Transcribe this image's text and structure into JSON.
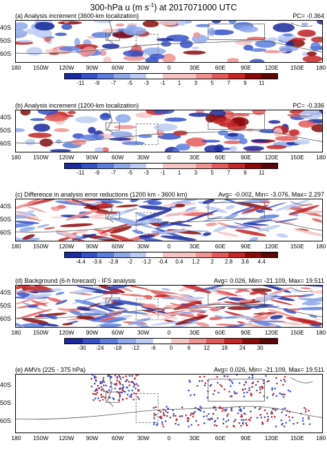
{
  "figure": {
    "title_main": "300-hPa u (m s",
    "title_sup": "-1",
    "title_end": ") at 2017071000 UTC"
  },
  "colors": {
    "blues": [
      "#1b2a9e",
      "#3550c9",
      "#5b7ede",
      "#8ea8ea",
      "#bccbf3",
      "#ffffff"
    ],
    "reds": [
      "#ffffff",
      "#f6c3c3",
      "#ef9292",
      "#e35a5a",
      "#c42626",
      "#8a0a0a"
    ],
    "coast": "#555555",
    "box": "#555555"
  },
  "panels": [
    {
      "title": "(a) Analysis increment (3600-km localization)",
      "stat": "PC= -0.364",
      "lat_labels": [
        "40S",
        "50S",
        "60S"
      ],
      "lon_labels": [
        "180",
        "150W",
        "120W",
        "90W",
        "60W",
        "30W",
        "0",
        "30E",
        "60E",
        "90E",
        "120E",
        "150E",
        "180"
      ],
      "cbar_labels": [
        "-11",
        "-9",
        "-7",
        "-5",
        "-3",
        "-1",
        "1",
        "3",
        "5",
        "7",
        "9",
        "11"
      ],
      "density": 0.42,
      "style": "blob"
    },
    {
      "title": "(b) Analysis increment (1200-km localization)",
      "stat": "PC= -0.336",
      "lat_labels": [
        "40S",
        "50S",
        "60S"
      ],
      "lon_labels": [
        "180",
        "150W",
        "120W",
        "90W",
        "60W",
        "30W",
        "0",
        "30E",
        "60E",
        "90E",
        "120E",
        "150E",
        "180"
      ],
      "cbar_labels": [
        "-11",
        "-9",
        "-7",
        "-5",
        "-3",
        "-1",
        "1",
        "3",
        "5",
        "7",
        "9",
        "11"
      ],
      "density": 0.4,
      "style": "blob"
    },
    {
      "title": "(c) Difference in analysis error reductions (1200 km - 3600 km)",
      "stat": "Avg= -0.002, Min= -3.076, Max= 2.297",
      "lat_labels": [
        "40S",
        "50S",
        "60S"
      ],
      "lon_labels": [
        "180",
        "150W",
        "120W",
        "90W",
        "60W",
        "30W",
        "0",
        "30E",
        "60E",
        "90E",
        "120E",
        "150E",
        "180"
      ],
      "cbar_labels": [
        "-4.4",
        "-3.6",
        "-2.8",
        "-2",
        "-1.2",
        "-0.4",
        "0.4",
        "1.2",
        "2",
        "2.8",
        "3.6",
        "4.4"
      ],
      "density": 0.55,
      "style": "streak"
    },
    {
      "title": "(d) Background (6-h forecast) - IFS analysis",
      "stat": "Avg= 0.026, Min= -21.109, Max= 19.511",
      "lat_labels": [
        "40S",
        "50S",
        "60S"
      ],
      "lon_labels": [
        "180",
        "150W",
        "120W",
        "90W",
        "60W",
        "30W",
        "0",
        "30E",
        "60E",
        "90E",
        "120E",
        "150E",
        "180"
      ],
      "cbar_labels": [
        "-30",
        "-24",
        "-18",
        "-12",
        "-6",
        "0",
        "6",
        "12",
        "18",
        "24",
        "30"
      ],
      "density": 0.8,
      "style": "streak"
    },
    {
      "title": "(e) AMVs (225 - 375 hPa)",
      "stat": "Avg= 0.026, Min= -21.109, Max= 19.511",
      "lat_labels": [
        "40S",
        "50S",
        "60S"
      ],
      "lon_labels": [
        "180",
        "150W",
        "120W",
        "90W",
        "60W",
        "30W",
        "0",
        "30E",
        "60E",
        "90E",
        "120E",
        "150E",
        "180"
      ],
      "density": 0.3,
      "style": "dots"
    }
  ]
}
